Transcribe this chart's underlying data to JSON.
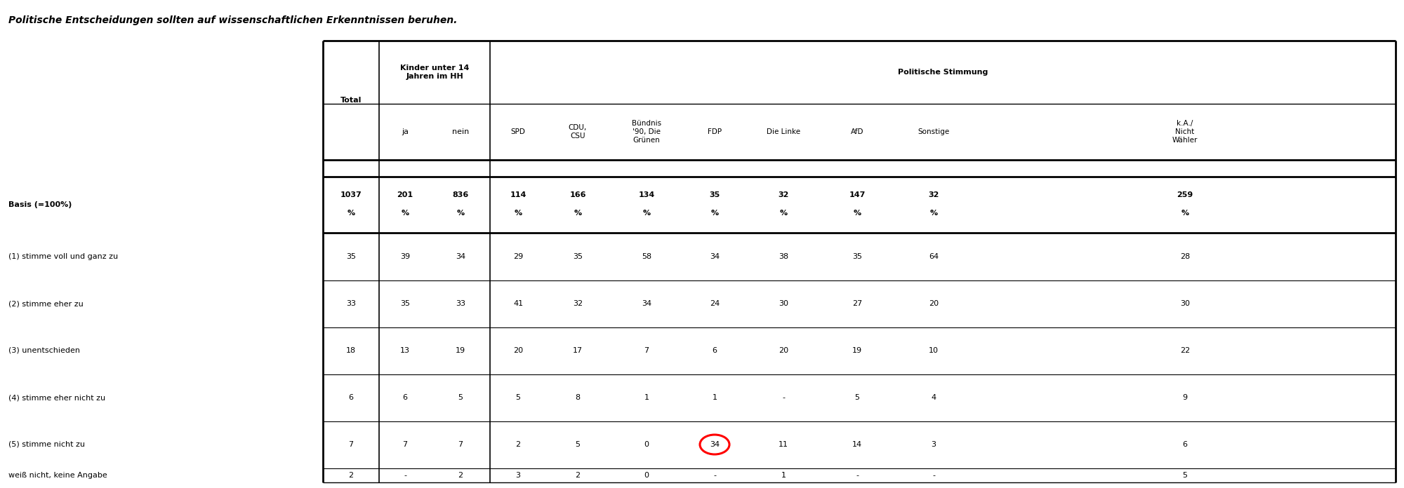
{
  "title": "Politische Entscheidungen sollten auf wissenschaftlichen Erkenntnissen beruhen.",
  "row_labels": [
    "Basis (=100%)",
    "(1) stimme voll und ganz zu",
    "(2) stimme eher zu",
    "(3) unentschieden",
    "(4) stimme eher nicht zu",
    "(5) stimme nicht zu",
    "weiß nicht, keine Angabe"
  ],
  "col_labels_row1": [
    "Total",
    "Kinder unter 14\nJahren im HH",
    "Politische Stimmung"
  ],
  "col_labels_row2": [
    "ja",
    "nein",
    "SPD",
    "CDU,\nCSU",
    "Bündnis\n’90, Die\nGrünen",
    "FDP",
    "Die Linke",
    "AfD",
    "Sonstige",
    "k.A./\nNicht\nWähler"
  ],
  "basis_numbers": [
    "1037",
    "201",
    "836",
    "114",
    "166",
    "134",
    "35",
    "32",
    "147",
    "32",
    "259"
  ],
  "data": [
    [
      "35",
      "39",
      "34",
      "29",
      "35",
      "58",
      "34",
      "38",
      "35",
      "64",
      "28"
    ],
    [
      "33",
      "35",
      "33",
      "41",
      "32",
      "34",
      "24",
      "30",
      "27",
      "20",
      "30"
    ],
    [
      "18",
      "13",
      "19",
      "20",
      "17",
      "7",
      "6",
      "20",
      "19",
      "10",
      "22"
    ],
    [
      "6",
      "6",
      "5",
      "5",
      "8",
      "1",
      "1",
      "-",
      "5",
      "4",
      "9"
    ],
    [
      "7",
      "7",
      "7",
      "2",
      "5",
      "0",
      "34",
      "11",
      "14",
      "3",
      "6"
    ],
    [
      "2",
      "-",
      "2",
      "3",
      "2",
      "0",
      "-",
      "1",
      "-",
      "-",
      "5"
    ]
  ],
  "circled_row": 4,
  "circled_col": 6,
  "title_fontsize": 10,
  "header_fontsize": 8,
  "cell_fontsize": 8,
  "row_label_fontsize": 8
}
